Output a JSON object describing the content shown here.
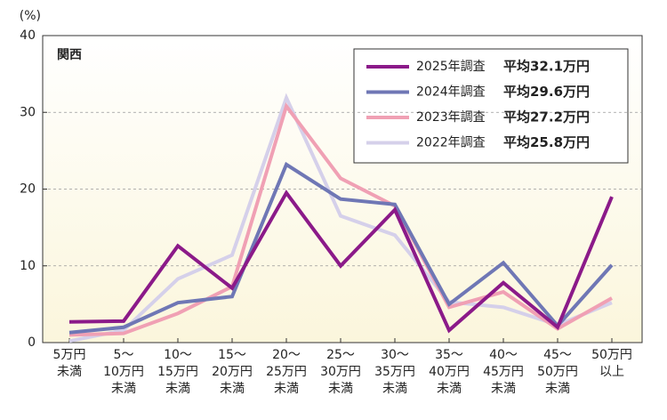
{
  "chart_data": {
    "type": "line",
    "title": "関西",
    "y_unit": "(%)",
    "categories": [
      [
        "5万円",
        "未満"
      ],
      [
        "5〜",
        "10万円",
        "未満"
      ],
      [
        "10〜",
        "15万円",
        "未満"
      ],
      [
        "15〜",
        "20万円",
        "未満"
      ],
      [
        "20〜",
        "25万円",
        "未満"
      ],
      [
        "25〜",
        "30万円",
        "未満"
      ],
      [
        "30〜",
        "35万円",
        "未満"
      ],
      [
        "35〜",
        "40万円",
        "未満"
      ],
      [
        "40〜",
        "45万円",
        "未満"
      ],
      [
        "45〜",
        "50万円",
        "未満"
      ],
      [
        "50万円",
        "以上"
      ]
    ],
    "series": [
      {
        "name": "2025年調査",
        "note": "平均32.1万円",
        "color": "#8b1a89",
        "values": [
          2.7,
          2.8,
          12.6,
          7.1,
          19.5,
          10.0,
          17.3,
          1.6,
          7.8,
          2.0,
          19.0
        ]
      },
      {
        "name": "2024年調査",
        "note": "平均29.6万円",
        "color": "#6f77b5",
        "values": [
          1.3,
          2.0,
          5.2,
          6.0,
          23.2,
          18.7,
          18.0,
          5.0,
          10.4,
          2.2,
          10.1
        ]
      },
      {
        "name": "2023年調査",
        "note": "平均27.2万円",
        "color": "#f0a0b4",
        "values": [
          1.0,
          1.2,
          3.8,
          7.3,
          30.8,
          21.4,
          17.8,
          4.6,
          6.6,
          1.8,
          5.8
        ]
      },
      {
        "name": "2022年調査",
        "note": "平均25.8万円",
        "color": "#d5d0ea",
        "values": [
          0.2,
          1.6,
          8.3,
          11.4,
          31.9,
          16.5,
          14.0,
          5.3,
          4.6,
          2.3,
          5.2
        ]
      }
    ],
    "ylim": [
      0,
      40
    ],
    "yticks": [
      0,
      10,
      20,
      30,
      40
    ],
    "grid": true,
    "legend": "top-right"
  }
}
